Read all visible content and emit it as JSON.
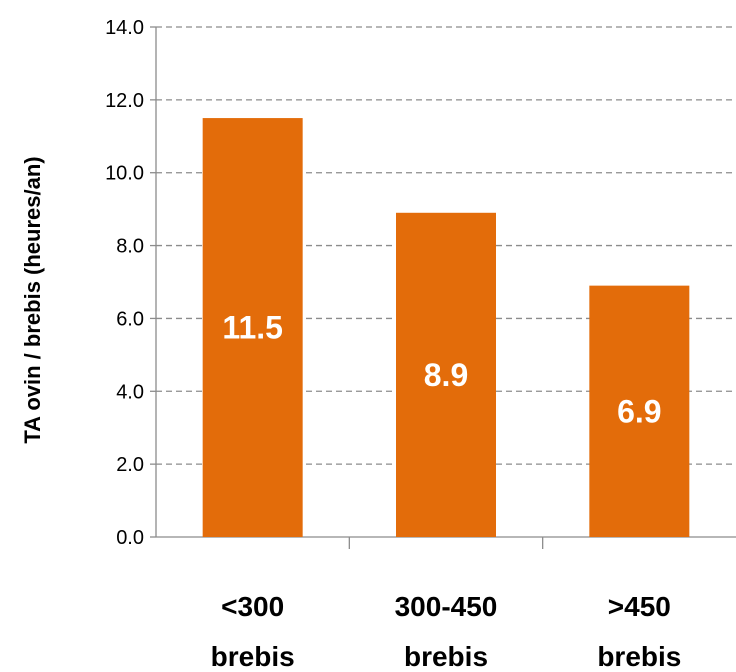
{
  "chart_data": {
    "type": "bar",
    "categories": [
      [
        "<300",
        "brebis"
      ],
      [
        "300-450",
        "brebis"
      ],
      [
        ">450",
        "brebis"
      ]
    ],
    "values": [
      11.5,
      8.9,
      6.9
    ],
    "data_labels": [
      "11.5",
      "8.9",
      "6.9"
    ],
    "ylabel": "TA ovin / brebis (heures/an)",
    "ylim": [
      0,
      14
    ],
    "yticks": [
      "0.0",
      "2.0",
      "4.0",
      "6.0",
      "8.0",
      "10.0",
      "12.0",
      "14.0"
    ],
    "grid": true,
    "bar_color": "#E36C0A",
    "grid_color": "#8C8C8C"
  }
}
